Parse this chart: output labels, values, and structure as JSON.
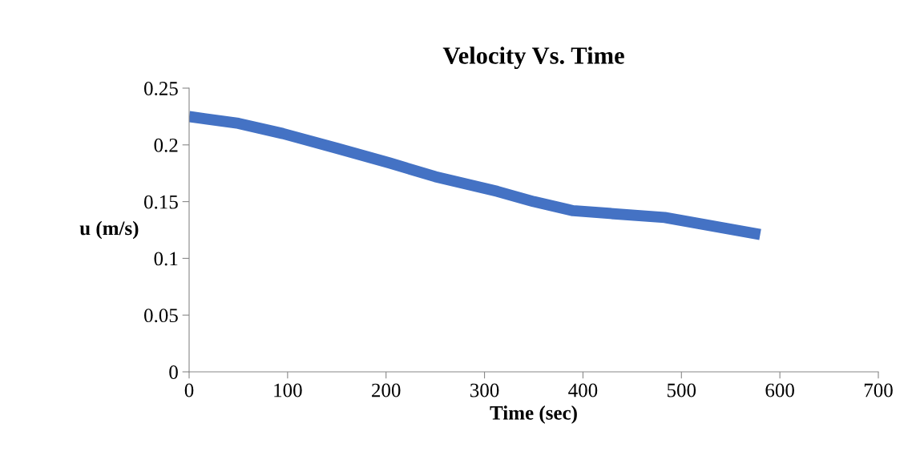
{
  "chart_data": {
    "type": "line",
    "title": "Velocity Vs. Time",
    "xlabel": "Time (sec)",
    "ylabel": "u (m/s)",
    "series": [
      {
        "color": "#4472c4",
        "x": [
          0,
          50,
          95,
          150,
          204,
          250,
          313,
          350,
          390,
          483,
          580
        ],
        "values": [
          0.225,
          0.219,
          0.21,
          0.197,
          0.184,
          0.172,
          0.159,
          0.15,
          0.142,
          0.136,
          0.121
        ]
      }
    ],
    "xlim": [
      0,
      700
    ],
    "xticks": [
      0,
      100,
      200,
      300,
      400,
      500,
      600,
      700
    ],
    "ylim": [
      0,
      0.25
    ],
    "yticks": [
      {
        "value": 0,
        "label": "0"
      },
      {
        "value": 0.05,
        "label": "0.05"
      },
      {
        "value": 0.1,
        "label": "0.1"
      },
      {
        "value": 0.15,
        "label": "0.15"
      },
      {
        "value": 0.2,
        "label": "0.2"
      },
      {
        "value": 0.25,
        "label": "0.25"
      }
    ],
    "grid": false,
    "legend": false,
    "marker": "none",
    "line_style": "solid"
  }
}
